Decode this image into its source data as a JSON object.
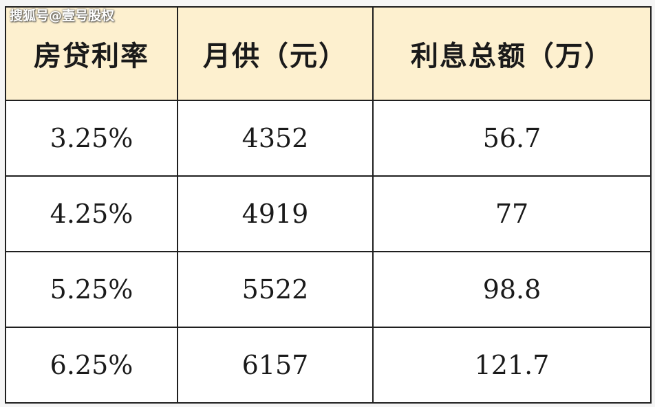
{
  "watermark": "搜狐号@壹号股权",
  "chart_data": {
    "type": "table",
    "columns": [
      "房贷利率",
      "月供（元）",
      "利息总额（万）"
    ],
    "rows": [
      [
        "3.25%",
        "4352",
        "56.7"
      ],
      [
        "4.25%",
        "4919",
        "77"
      ],
      [
        "5.25%",
        "5522",
        "98.8"
      ],
      [
        "6.25%",
        "6157",
        "121.7"
      ]
    ]
  }
}
